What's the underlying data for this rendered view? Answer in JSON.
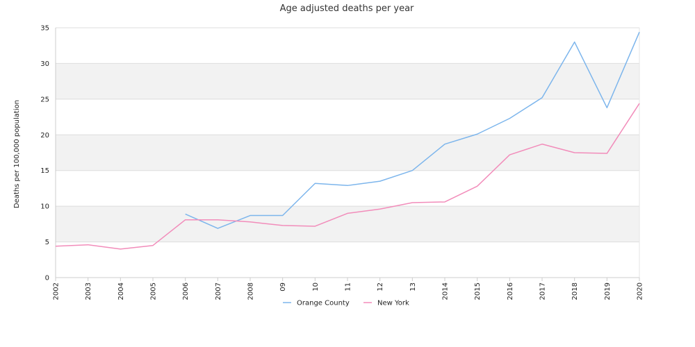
{
  "chart_data": {
    "type": "line",
    "title": "Age adjusted deaths per year",
    "xlabel": "",
    "ylabel": "Deaths per 100,000 population",
    "ylim": [
      0,
      35
    ],
    "yticks": [
      0,
      5,
      10,
      15,
      20,
      25,
      30,
      35
    ],
    "categories": [
      "2002",
      "2003",
      "2004",
      "2005",
      "2006",
      "2007",
      "2008",
      "09",
      "10",
      "11",
      "12",
      "13",
      "2014",
      "2015",
      "2016",
      "2017",
      "2018",
      "2019",
      "2020"
    ],
    "grid": "horizontal alternating bands",
    "legend_position": "bottom",
    "colors": {
      "band": "#f2f2f2",
      "grid": "#dddddd",
      "axis": "#cccccc"
    },
    "series": [
      {
        "name": "Orange County",
        "color": "#7cb5ec",
        "values": [
          null,
          null,
          null,
          null,
          8.9,
          6.9,
          8.7,
          8.7,
          13.2,
          12.9,
          13.5,
          15.0,
          18.7,
          20.1,
          22.3,
          25.2,
          33.0,
          23.8,
          34.4
        ]
      },
      {
        "name": "New York",
        "color": "#f28cba",
        "values": [
          4.4,
          4.6,
          4.0,
          4.5,
          8.1,
          8.1,
          7.8,
          7.3,
          7.2,
          9.0,
          9.6,
          10.5,
          10.6,
          12.8,
          17.2,
          18.7,
          17.5,
          17.4,
          24.4
        ]
      }
    ]
  }
}
